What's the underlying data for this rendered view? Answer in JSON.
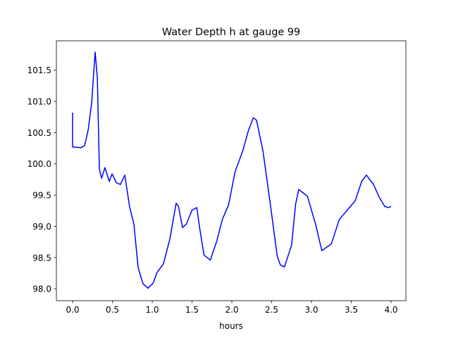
{
  "chart_data": {
    "type": "line",
    "title": "Water Depth h at gauge 99",
    "xlabel": "hours",
    "ylabel": "",
    "xlim": [
      -0.204,
      4.186
    ],
    "ylim": [
      97.81,
      101.97
    ],
    "xticks": [
      0.0,
      0.5,
      1.0,
      1.5,
      2.0,
      2.5,
      3.0,
      3.5,
      4.0
    ],
    "xtick_labels": [
      "0.0",
      "0.5",
      "1.0",
      "1.5",
      "2.0",
      "2.5",
      "3.0",
      "3.5",
      "4.0"
    ],
    "yticks": [
      98.0,
      98.5,
      99.0,
      99.5,
      100.0,
      100.5,
      101.0,
      101.5
    ],
    "ytick_labels": [
      "98.0",
      "98.5",
      "99.0",
      "99.5",
      "100.0",
      "100.5",
      "101.0",
      "101.5"
    ],
    "grid": false,
    "series": [
      {
        "name": "h",
        "color": "#0000ff",
        "x": [
          0,
          0,
          0.106,
          0.15,
          0.195,
          0.24,
          0.283,
          0.31,
          0.336,
          0.363,
          0.407,
          0.46,
          0.496,
          0.549,
          0.6,
          0.655,
          0.717,
          0.77,
          0.823,
          0.885,
          0.947,
          1.01,
          1.06,
          1.14,
          1.22,
          1.3,
          1.33,
          1.38,
          1.43,
          1.5,
          1.56,
          1.59,
          1.65,
          1.73,
          1.81,
          1.88,
          1.96,
          2.04,
          2.14,
          2.21,
          2.27,
          2.31,
          2.39,
          2.48,
          2.57,
          2.61,
          2.66,
          2.75,
          2.8,
          2.84,
          2.89,
          2.95,
          3.05,
          3.13,
          3.25,
          3.35,
          3.45,
          3.55,
          3.63,
          3.69,
          3.78,
          3.85,
          3.92,
          3.97,
          4.0
        ],
        "y": [
          100.82,
          100.27,
          100.26,
          100.29,
          100.54,
          100.99,
          101.79,
          101.39,
          99.92,
          99.77,
          99.94,
          99.72,
          99.84,
          99.7,
          99.67,
          99.82,
          99.3,
          99.04,
          98.34,
          98.08,
          98.01,
          98.09,
          98.26,
          98.4,
          98.79,
          99.37,
          99.32,
          98.98,
          99.04,
          99.26,
          99.3,
          99.02,
          98.54,
          98.46,
          98.76,
          99.11,
          99.35,
          99.87,
          100.22,
          100.54,
          100.74,
          100.7,
          100.21,
          99.39,
          98.52,
          98.38,
          98.35,
          98.7,
          99.35,
          99.59,
          99.54,
          99.48,
          99.04,
          98.61,
          98.72,
          99.11,
          99.26,
          99.41,
          99.72,
          99.82,
          99.67,
          99.47,
          99.32,
          99.3,
          99.32
        ]
      }
    ]
  }
}
